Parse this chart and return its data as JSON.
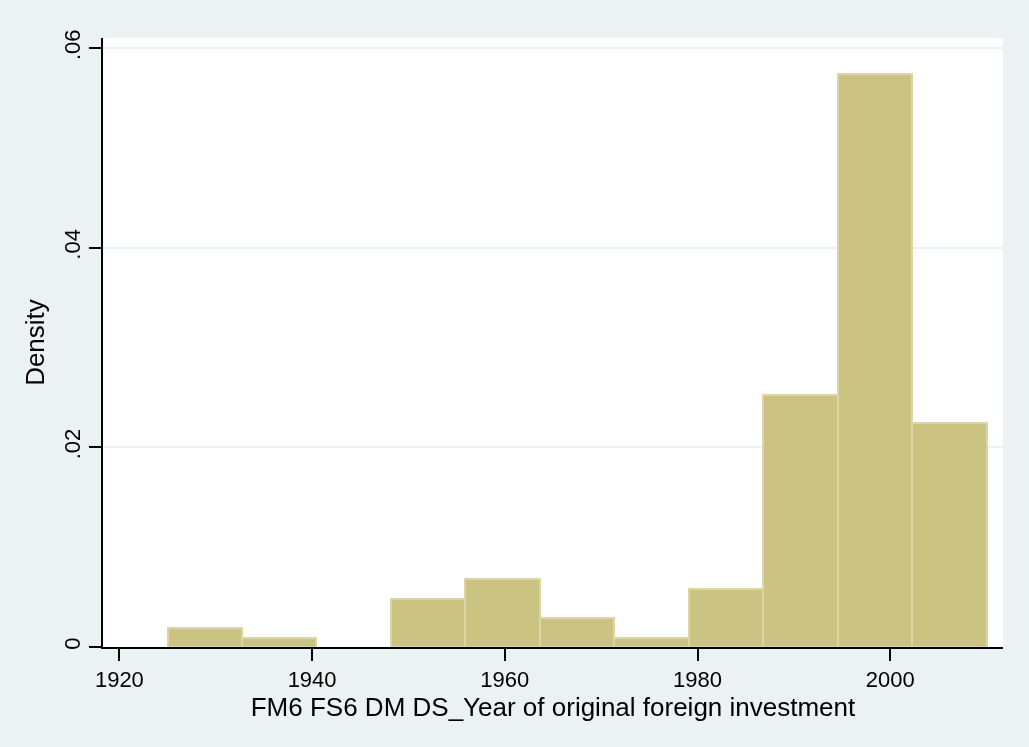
{
  "chart_data": {
    "type": "histogram",
    "xlabel": "FM6 FS6 DM DS_Year of original foreign investment",
    "ylabel": "Density",
    "bins": [
      1925,
      1932.73,
      1940.45,
      1948.18,
      1955.91,
      1963.64,
      1971.36,
      1979.09,
      1986.82,
      1994.55,
      2002.27,
      2010
    ],
    "values": [
      0.0019,
      0.0009,
      0,
      0.0048,
      0.0068,
      0.0029,
      0.0009,
      0.0058,
      0.0252,
      0.0574,
      0.0224
    ],
    "color": "#cbc382",
    "xlim": [
      1918.3,
      2011.7
    ],
    "xticks": [
      1920,
      1940,
      1960,
      1980,
      2000
    ],
    "ylim": [
      0,
      0.061
    ],
    "yticks": [
      {
        "value": 0,
        "label": "0"
      },
      {
        "value": 0.02,
        "label": ".02"
      },
      {
        "value": 0.04,
        "label": ".04"
      },
      {
        "value": 0.06,
        "label": ".06"
      }
    ],
    "grid": "y"
  }
}
